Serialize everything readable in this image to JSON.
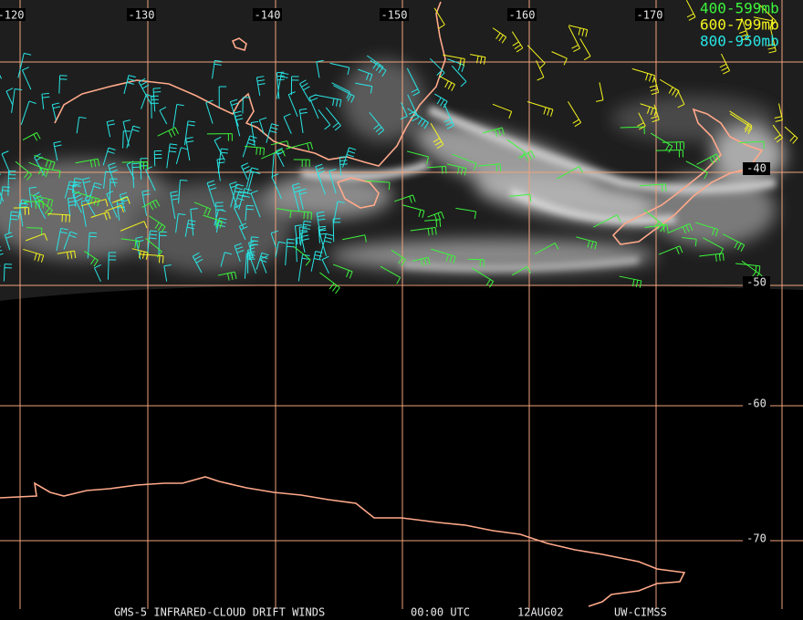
{
  "map": {
    "longitude_labels": [
      "-120",
      "-130",
      "-140",
      "-150",
      "-160",
      "-170"
    ],
    "latitude_labels": [
      "-40",
      "-50",
      "-60",
      "-70"
    ],
    "legend": [
      {
        "label": "400-599mb",
        "color": "#3cf53c"
      },
      {
        "label": "600-799mb",
        "color": "#f5f51e"
      },
      {
        "label": "800-950mb",
        "color": "#28e6e6"
      }
    ],
    "footer": [
      "GMS-5 INFRARED-CLOUD DRIFT WINDS",
      "00:00 UTC",
      "12AUG02",
      "UW-CIMSS"
    ]
  }
}
